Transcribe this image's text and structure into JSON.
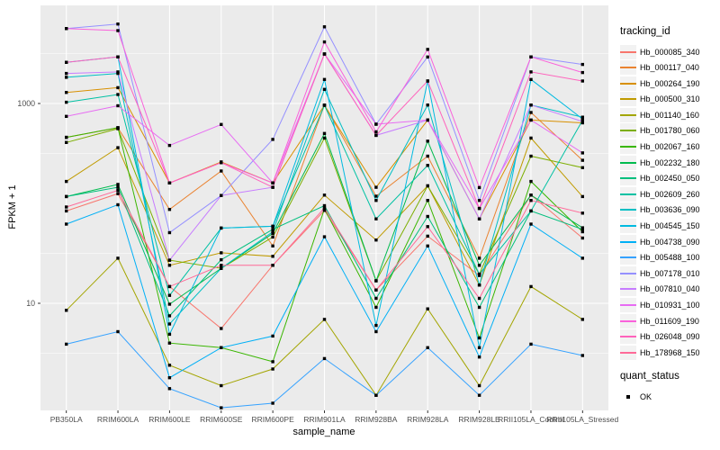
{
  "figure": {
    "background": "#FFFFFF",
    "panel_background": "#EBEBEB",
    "grid_color": "#FFFFFF",
    "axis_text_color": "#4D4D4D",
    "tick_mark_color": "#333333"
  },
  "chart_data": {
    "type": "line",
    "title": "",
    "xlabel": "sample_name",
    "ylabel": "FPKM + 1",
    "y_scale": "log10",
    "ylim": [
      0.85,
      9600
    ],
    "grid": true,
    "legend_position": "right",
    "point_color": "#000000",
    "y_ticks": [
      {
        "label": "10",
        "value": 10
      },
      {
        "label": "1000",
        "value": 1000
      }
    ],
    "y_minor_gridlines": [
      3.162,
      31.62,
      316.2,
      3162
    ],
    "categories": [
      "PB350LA",
      "RRIM600LA",
      "RRIM600LE",
      "RRIM600SE",
      "RRIM600PE",
      "RRIM901LA",
      "RRIM928BA",
      "RRIM928LA",
      "RRIM928LE",
      "RRII105LA_Control",
      "RRII105LA_Stressed"
    ],
    "series": [
      {
        "name": "Hb_000085_340",
        "color": "#F8766D",
        "values": [
          84,
          125,
          14.7,
          5.6,
          24,
          85,
          13.6,
          47,
          19,
          121,
          45
        ]
      },
      {
        "name": "Hb_000117_040",
        "color": "#EA8331",
        "values": [
          458,
          570,
          87,
          211,
          37.5,
          965,
          118,
          297,
          28.3,
          813,
          270
        ]
      },
      {
        "name": "Hb_000264_190",
        "color": "#D89000",
        "values": [
          1290,
          1440,
          160,
          260,
          160,
          960,
          145,
          683,
          70,
          683,
          640
        ]
      },
      {
        "name": "Hb_000500_310",
        "color": "#C09B00",
        "values": [
          166,
          361,
          24,
          32,
          29.5,
          121,
          43,
          150,
          15.2,
          451,
          117
        ]
      },
      {
        "name": "Hb_001140_160",
        "color": "#A3A500",
        "values": [
          8.5,
          28.3,
          2.4,
          1.5,
          2.2,
          6.9,
          1.2,
          8.8,
          1.5,
          14.7,
          6.9
        ]
      },
      {
        "name": "Hb_001780_060",
        "color": "#7CAE00",
        "values": [
          407,
          560,
          27,
          22.4,
          46,
          451,
          16.8,
          150,
          19.6,
          297,
          228
        ]
      },
      {
        "name": "Hb_002067_160",
        "color": "#39B600",
        "values": [
          458,
          573,
          4.0,
          3.6,
          2.6,
          88,
          9.1,
          107,
          4.5,
          166,
          52
        ]
      },
      {
        "name": "Hb_002232_180",
        "color": "#00BB4E",
        "values": [
          117,
          155,
          9.8,
          22.4,
          50,
          501,
          16.8,
          420,
          24,
          121,
          57
        ]
      },
      {
        "name": "Hb_002450_050",
        "color": "#00BF7D",
        "values": [
          117,
          145,
          7.5,
          27.3,
          55,
          95,
          11.2,
          74,
          9.1,
          84,
          55
        ]
      },
      {
        "name": "Hb_002609_260",
        "color": "#00C1A3",
        "values": [
          1030,
          1230,
          12,
          56.6,
          59,
          960,
          70,
          240,
          19.6,
          84,
          680
        ]
      },
      {
        "name": "Hb_003636_090",
        "color": "#00BFC4",
        "values": [
          1830,
          2000,
          6.2,
          22.4,
          52,
          1385,
          107,
          966,
          15.2,
          966,
          730
        ]
      },
      {
        "name": "Hb_004545_150",
        "color": "#00BAE0",
        "values": [
          2580,
          2930,
          4.9,
          56.6,
          59,
          1740,
          6.0,
          1680,
          3.6,
          1740,
          700
        ]
      },
      {
        "name": "Hb_004738_090",
        "color": "#00B0F6",
        "values": [
          62,
          97,
          1.8,
          3.6,
          4.7,
          46.3,
          5.2,
          37.5,
          2.9,
          62,
          28.3
        ]
      },
      {
        "name": "Hb_005488_100",
        "color": "#35A2FF",
        "values": [
          3.9,
          5.2,
          1.4,
          0.9,
          1.0,
          2.8,
          1.2,
          3.6,
          1.2,
          3.9,
          3.0
        ]
      },
      {
        "name": "Hb_007178_010",
        "color": "#9590FF",
        "values": [
          5630,
          6240,
          51,
          120,
          437,
          5850,
          620,
          2920,
          107,
          2930,
          2460
        ]
      },
      {
        "name": "Hb_007810_040",
        "color": "#C77CFF",
        "values": [
          2000,
          2070,
          27,
          120,
          145,
          3130,
          480,
          683,
          70,
          966,
          660
        ]
      },
      {
        "name": "Hb_010931_100",
        "color": "#E76BF3",
        "values": [
          743,
          950,
          380,
          617,
          160,
          3130,
          620,
          683,
          89,
          683,
          320
        ]
      },
      {
        "name": "Hb_011609_190",
        "color": "#FA62DB",
        "values": [
          5630,
          5370,
          160,
          256,
          160,
          4130,
          520,
          3480,
          144,
          2930,
          2040
        ]
      },
      {
        "name": "Hb_026048_090",
        "color": "#FF62BC",
        "values": [
          2580,
          2930,
          160,
          256,
          145,
          3130,
          480,
          1680,
          89,
          2070,
          1680
        ]
      },
      {
        "name": "Hb_178968_150",
        "color": "#FF6A98",
        "values": [
          92,
          135,
          14.7,
          24,
          24,
          90,
          13.6,
          58.5,
          11.2,
          107,
          80
        ]
      }
    ],
    "legend_title": "tracking_id",
    "quant_legend": {
      "title": "quant_status",
      "items": [
        {
          "label": "OK",
          "marker": "black-square-point"
        }
      ]
    }
  }
}
